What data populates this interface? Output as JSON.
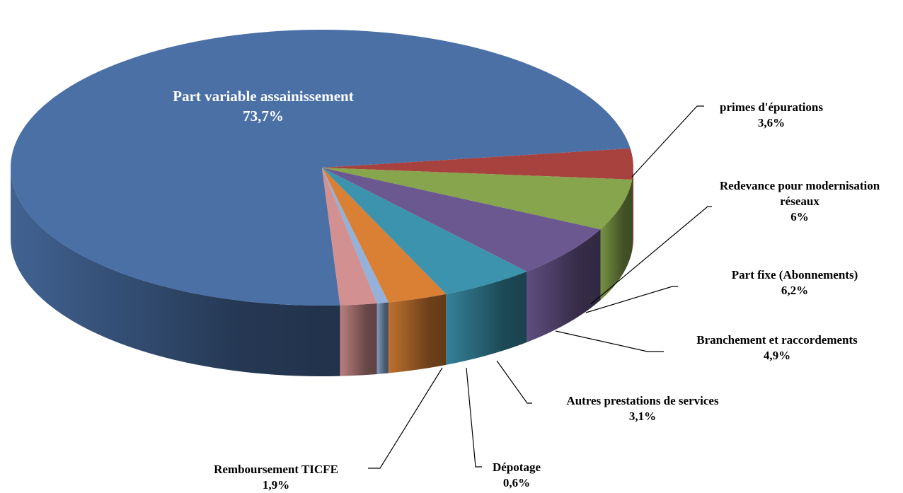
{
  "chart_data": {
    "type": "pie",
    "categories": [
      "Part variable assainissement",
      "primes d'épurations",
      "Redevance pour modernisation réseaux",
      "Part fixe (Abonnements)",
      "Branchement et raccordements",
      "Autres prestations de services",
      "Dépotage",
      "Remboursement TICFE"
    ],
    "values": [
      73.7,
      3.6,
      6,
      6.2,
      4.9,
      3.1,
      0.6,
      1.9
    ],
    "value_labels": [
      "73,7%",
      "3,6%",
      "6%",
      "6,2%",
      "4,9%",
      "3,1%",
      "0,6%",
      "1,9%"
    ],
    "colors": [
      "#4a70a6",
      "#a8423f",
      "#87a54c",
      "#6c5890",
      "#3b93ae",
      "#d98035",
      "#93b1da",
      "#d29190"
    ]
  }
}
